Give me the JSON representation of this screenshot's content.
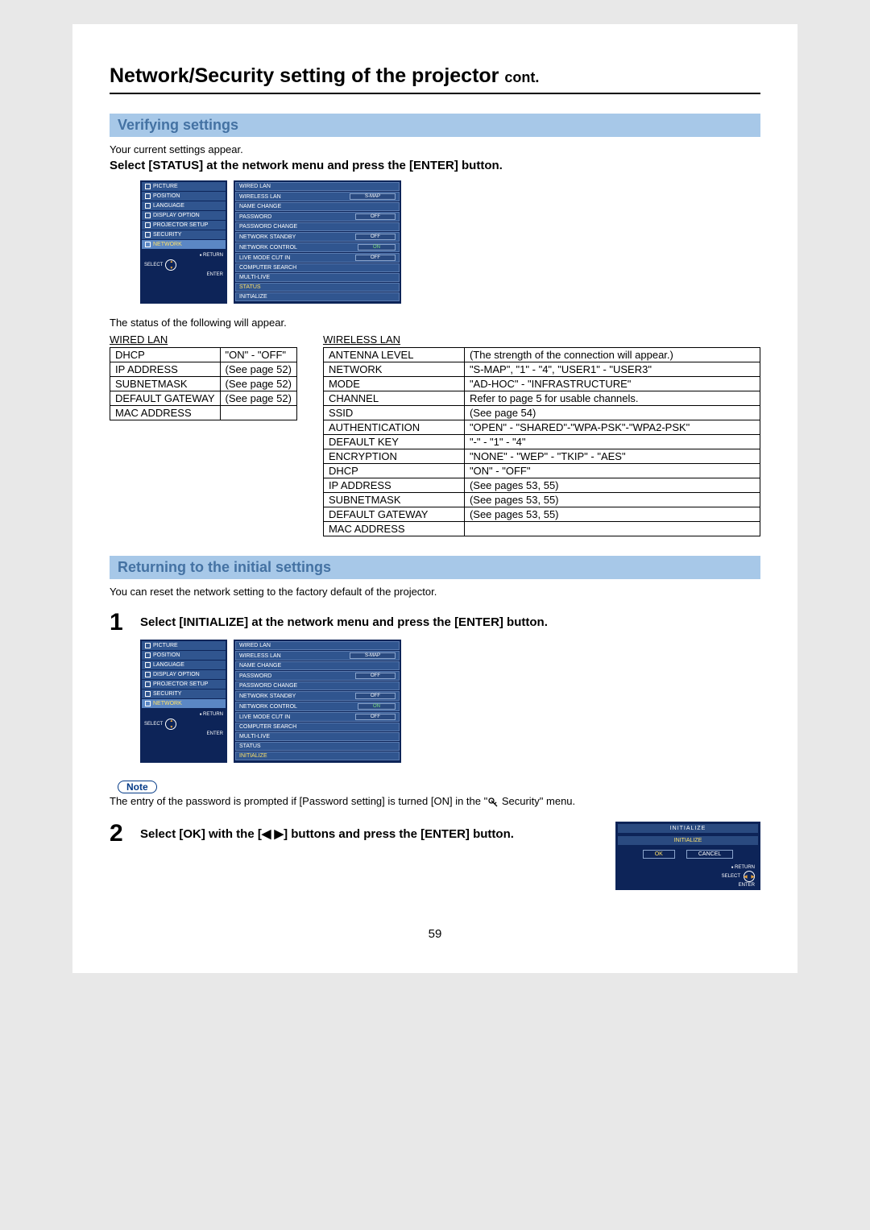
{
  "title_main": "Network/Security setting of the projector ",
  "title_cont": "cont.",
  "section1": "Verifying settings",
  "desc1": "Your current settings appear.",
  "bold1": "Select [STATUS] at the network menu and press the [ENTER] button.",
  "status_intro": "The status of the following will appear.",
  "left_menu": {
    "items": [
      {
        "label": "PICTURE"
      },
      {
        "label": "POSITION"
      },
      {
        "label": "LANGUAGE"
      },
      {
        "label": "DISPLAY OPTION"
      },
      {
        "label": "PROJECTOR SETUP"
      },
      {
        "label": "SECURITY"
      },
      {
        "label": "NETWORK"
      }
    ],
    "return": "RETURN",
    "select": "SELECT",
    "enter": "ENTER"
  },
  "net_menu": {
    "items": [
      {
        "label": "WIRED LAN",
        "val": ""
      },
      {
        "label": "WIRELESS LAN",
        "val": "S-MAP"
      },
      {
        "label": "NAME CHANGE",
        "val": ""
      },
      {
        "label": "PASSWORD",
        "val": "OFF"
      },
      {
        "label": "PASSWORD CHANGE",
        "val": ""
      },
      {
        "label": "NETWORK STANDBY",
        "val": "OFF"
      },
      {
        "label": "NETWORK CONTROL",
        "val": "ON"
      },
      {
        "label": "LIVE MODE CUT IN",
        "val": "OFF"
      },
      {
        "label": "COMPUTER SEARCH",
        "val": ""
      },
      {
        "label": "MULTI-LIVE",
        "val": ""
      },
      {
        "label": "STATUS",
        "val": ""
      },
      {
        "label": "INITIALIZE",
        "val": ""
      }
    ]
  },
  "wired_label": "WIRED LAN",
  "wired_rows": [
    [
      "DHCP",
      "\"ON\" - \"OFF\""
    ],
    [
      "IP ADDRESS",
      "(See page 52)"
    ],
    [
      "SUBNETMASK",
      "(See page 52)"
    ],
    [
      "DEFAULT GATEWAY",
      "(See page 52)"
    ],
    [
      "MAC ADDRESS",
      ""
    ]
  ],
  "wireless_label": "WIRELESS LAN",
  "wireless_rows": [
    [
      "ANTENNA LEVEL",
      "(The strength of the connection will appear.)"
    ],
    [
      "NETWORK",
      "\"S-MAP\", \"1\" - \"4\", \"USER1\" - \"USER3\""
    ],
    [
      "MODE",
      "\"AD-HOC\" - \"INFRASTRUCTURE\""
    ],
    [
      "CHANNEL",
      "Refer to page 5 for usable channels."
    ],
    [
      "SSID",
      "(See page 54)"
    ],
    [
      "AUTHENTICATION",
      "\"OPEN\" - \"SHARED\"-\"WPA-PSK\"-\"WPA2-PSK\""
    ],
    [
      "DEFAULT KEY",
      "\"-\" - \"1\" - \"4\""
    ],
    [
      "ENCRYPTION",
      "\"NONE\" - \"WEP\" - \"TKIP\" - \"AES\""
    ],
    [
      "DHCP",
      "\"ON\" - \"OFF\""
    ],
    [
      "IP ADDRESS",
      "(See pages 53, 55)"
    ],
    [
      "SUBNETMASK",
      "(See pages 53, 55)"
    ],
    [
      "DEFAULT GATEWAY",
      "(See pages 53, 55)"
    ],
    [
      "MAC ADDRESS",
      ""
    ]
  ],
  "section2": "Returning to the initial settings",
  "desc2": "You can reset the network setting to the factory default of the projector.",
  "step1_num": "1",
  "step1_text": "Select [INITIALIZE] at the network menu and press the [ENTER] button.",
  "note_label": "Note",
  "note_text_a": "The entry of the password is prompted if [Password setting] is turned [ON] in the \"",
  "note_text_b": " Security\" menu.",
  "step2_num": "2",
  "step2_text_a": "Select [OK] with the [",
  "step2_text_b": "] buttons and press the [ENTER] button.",
  "init_dialog": {
    "title": "INITIALIZE",
    "sub": "INITIALIZE",
    "ok": "OK",
    "cancel": "CANCEL",
    "return": "RETURN",
    "select": "SELECT",
    "enter": "ENTER"
  },
  "page_num": "59",
  "highlight_1": "STATUS",
  "highlight_2": "INITIALIZE"
}
